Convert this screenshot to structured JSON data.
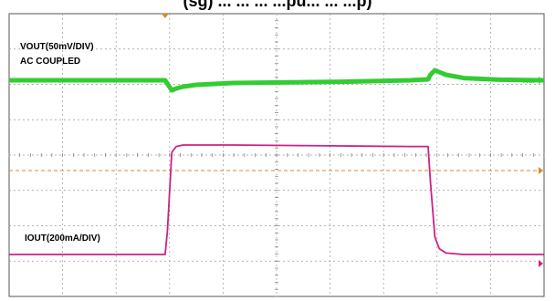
{
  "title": "(sg) ... ... ... ...pu... ... ...p)",
  "chart_data": {
    "type": "line",
    "title": "(sg) ... ... ... ...pu... ... ...p)",
    "x": [
      0,
      3.5,
      3.55,
      3.65,
      3.75,
      3.9,
      4.2,
      5.0,
      7.5,
      9.0,
      9.4,
      9.45,
      9.55,
      9.65,
      9.8,
      10.2,
      11.0,
      12
    ],
    "xlim": [
      0,
      12
    ],
    "grid": true,
    "series": [
      {
        "name": "VOUT(50mV/DIV)",
        "label_line2": "AC COUPLED",
        "color": "#33cc33",
        "marker_text": "vout",
        "values": [
          0,
          0,
          -0.2,
          -0.55,
          -0.45,
          -0.35,
          -0.25,
          -0.15,
          -0.08,
          0,
          0.05,
          0.3,
          0.55,
          0.45,
          0.3,
          0.12,
          0.03,
          0
        ]
      },
      {
        "name": "IOUT(200mA/DIV)",
        "color": "#cc2288",
        "values": [
          0,
          0,
          0.8,
          3.5,
          3.7,
          3.75,
          3.75,
          3.75,
          3.72,
          3.7,
          3.7,
          2.5,
          0.6,
          0.2,
          0.05,
          0,
          0,
          0
        ]
      }
    ]
  }
}
